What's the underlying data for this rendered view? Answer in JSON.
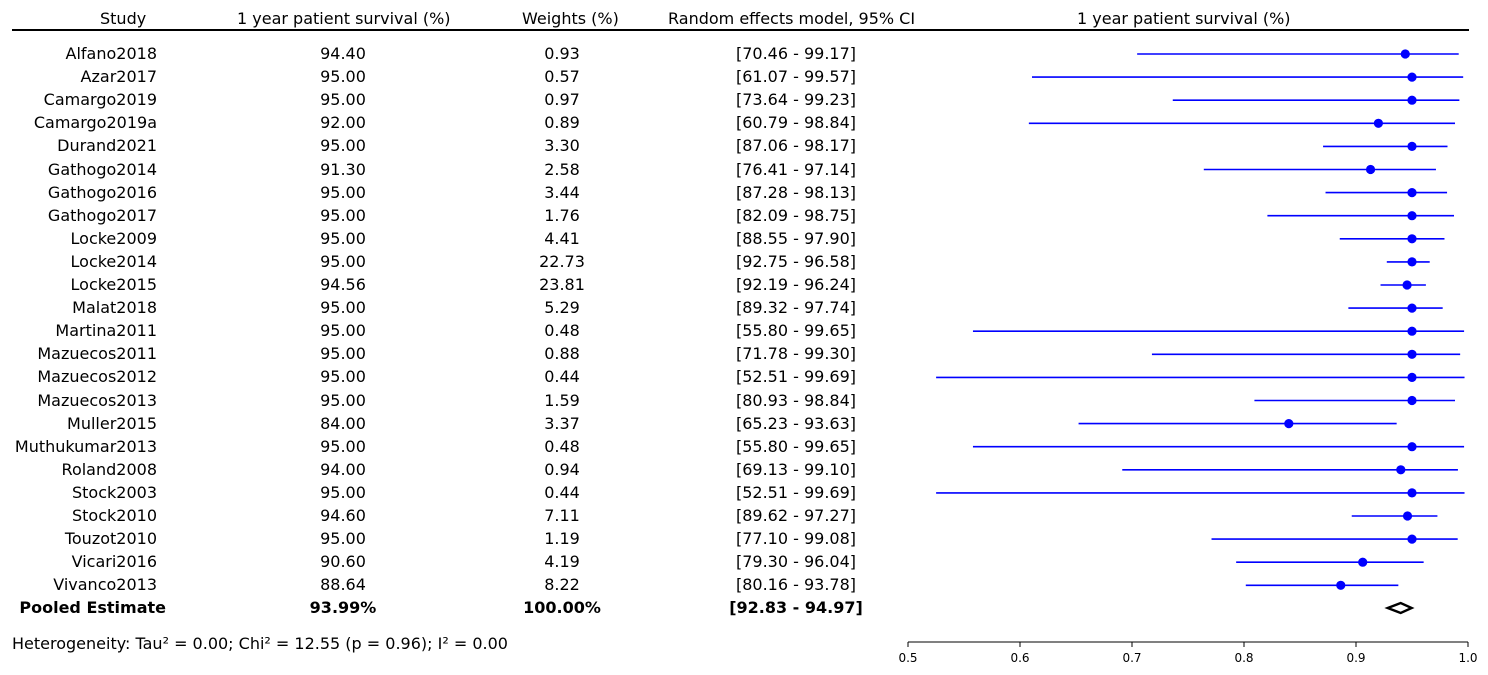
{
  "headers": {
    "study": "Study",
    "survival": "1 year patient survival (%)",
    "weights": "Weights (%)",
    "ci": "Random effects model, 95% CI",
    "plot": "1 year patient survival (%)"
  },
  "rows": [
    {
      "study": "Alfano2018",
      "survival": "94.40",
      "weight": "0.93",
      "ci": "[70.46 - 99.17]"
    },
    {
      "study": "Azar2017",
      "survival": "95.00",
      "weight": "0.57",
      "ci": "[61.07 - 99.57]"
    },
    {
      "study": "Camargo2019",
      "survival": "95.00",
      "weight": "0.97",
      "ci": "[73.64 - 99.23]"
    },
    {
      "study": "Camargo2019a",
      "survival": "92.00",
      "weight": "0.89",
      "ci": "[60.79 - 98.84]"
    },
    {
      "study": "Durand2021",
      "survival": "95.00",
      "weight": "3.30",
      "ci": "[87.06 - 98.17]"
    },
    {
      "study": "Gathogo2014",
      "survival": "91.30",
      "weight": "2.58",
      "ci": "[76.41 - 97.14]"
    },
    {
      "study": "Gathogo2016",
      "survival": "95.00",
      "weight": "3.44",
      "ci": "[87.28 - 98.13]"
    },
    {
      "study": "Gathogo2017",
      "survival": "95.00",
      "weight": "1.76",
      "ci": "[82.09 - 98.75]"
    },
    {
      "study": "Locke2009",
      "survival": "95.00",
      "weight": "4.41",
      "ci": "[88.55 - 97.90]"
    },
    {
      "study": "Locke2014",
      "survival": "95.00",
      "weight": "22.73",
      "ci": "[92.75 - 96.58]"
    },
    {
      "study": "Locke2015",
      "survival": "94.56",
      "weight": "23.81",
      "ci": "[92.19 - 96.24]"
    },
    {
      "study": "Malat2018",
      "survival": "95.00",
      "weight": "5.29",
      "ci": "[89.32 - 97.74]"
    },
    {
      "study": "Martina2011",
      "survival": "95.00",
      "weight": "0.48",
      "ci": "[55.80 - 99.65]"
    },
    {
      "study": "Mazuecos2011",
      "survival": "95.00",
      "weight": "0.88",
      "ci": "[71.78 - 99.30]"
    },
    {
      "study": "Mazuecos2012",
      "survival": "95.00",
      "weight": "0.44",
      "ci": "[52.51 - 99.69]"
    },
    {
      "study": "Mazuecos2013",
      "survival": "95.00",
      "weight": "1.59",
      "ci": "[80.93 - 98.84]"
    },
    {
      "study": "Muller2015",
      "survival": "84.00",
      "weight": "3.37",
      "ci": "[65.23 - 93.63]"
    },
    {
      "study": "Muthukumar2013",
      "survival": "95.00",
      "weight": "0.48",
      "ci": "[55.80 - 99.65]"
    },
    {
      "study": "Roland2008",
      "survival": "94.00",
      "weight": "0.94",
      "ci": "[69.13 - 99.10]"
    },
    {
      "study": "Stock2003",
      "survival": "95.00",
      "weight": "0.44",
      "ci": "[52.51 - 99.69]"
    },
    {
      "study": "Stock2010",
      "survival": "94.60",
      "weight": "7.11",
      "ci": "[89.62 - 97.27]"
    },
    {
      "study": "Touzot2010",
      "survival": "95.00",
      "weight": "1.19",
      "ci": "[77.10 - 99.08]"
    },
    {
      "study": "Vicari2016",
      "survival": "90.60",
      "weight": "4.19",
      "ci": "[79.30 - 96.04]"
    },
    {
      "study": "Vivanco2013",
      "survival": "88.64",
      "weight": "8.22",
      "ci": "[80.16 - 93.78]"
    }
  ],
  "pooled": {
    "study": "Pooled Estimate",
    "survival": "93.99%",
    "weight": "100.00%",
    "ci": "[92.83 - 94.97]"
  },
  "heterogeneity": "Heterogeneity: Tau² = 0.00; Chi² = 12.55 (p = 0.96); I² = 0.00",
  "chart_data": {
    "type": "scatter",
    "subtype": "forest-plot",
    "title": "1 year patient survival (%)",
    "xlim": [
      0.5,
      1.0
    ],
    "xticks": [
      0.5,
      0.6,
      0.7,
      0.8,
      0.9,
      1.0
    ],
    "xtick_labels": [
      "0.5",
      "0.6",
      "0.7",
      "0.8",
      "0.9",
      "1.0"
    ],
    "grid": false,
    "color": "#0000ff",
    "pooled_color": "#000000",
    "studies": [
      {
        "name": "Alfano2018",
        "estimate": 0.944,
        "lower": 0.7046,
        "upper": 0.9917
      },
      {
        "name": "Azar2017",
        "estimate": 0.95,
        "lower": 0.6107,
        "upper": 0.9957
      },
      {
        "name": "Camargo2019",
        "estimate": 0.95,
        "lower": 0.7364,
        "upper": 0.9923
      },
      {
        "name": "Camargo2019a",
        "estimate": 0.92,
        "lower": 0.6079,
        "upper": 0.9884
      },
      {
        "name": "Durand2021",
        "estimate": 0.95,
        "lower": 0.8706,
        "upper": 0.9817
      },
      {
        "name": "Gathogo2014",
        "estimate": 0.913,
        "lower": 0.7641,
        "upper": 0.9714
      },
      {
        "name": "Gathogo2016",
        "estimate": 0.95,
        "lower": 0.8728,
        "upper": 0.9813
      },
      {
        "name": "Gathogo2017",
        "estimate": 0.95,
        "lower": 0.8209,
        "upper": 0.9875
      },
      {
        "name": "Locke2009",
        "estimate": 0.95,
        "lower": 0.8855,
        "upper": 0.979
      },
      {
        "name": "Locke2014",
        "estimate": 0.95,
        "lower": 0.9275,
        "upper": 0.9658
      },
      {
        "name": "Locke2015",
        "estimate": 0.9456,
        "lower": 0.9219,
        "upper": 0.9624
      },
      {
        "name": "Malat2018",
        "estimate": 0.95,
        "lower": 0.8932,
        "upper": 0.9774
      },
      {
        "name": "Martina2011",
        "estimate": 0.95,
        "lower": 0.558,
        "upper": 0.9965
      },
      {
        "name": "Mazuecos2011",
        "estimate": 0.95,
        "lower": 0.7178,
        "upper": 0.993
      },
      {
        "name": "Mazuecos2012",
        "estimate": 0.95,
        "lower": 0.5251,
        "upper": 0.9969
      },
      {
        "name": "Mazuecos2013",
        "estimate": 0.95,
        "lower": 0.8093,
        "upper": 0.9884
      },
      {
        "name": "Muller2015",
        "estimate": 0.84,
        "lower": 0.6523,
        "upper": 0.9363
      },
      {
        "name": "Muthukumar2013",
        "estimate": 0.95,
        "lower": 0.558,
        "upper": 0.9965
      },
      {
        "name": "Roland2008",
        "estimate": 0.94,
        "lower": 0.6913,
        "upper": 0.991
      },
      {
        "name": "Stock2003",
        "estimate": 0.95,
        "lower": 0.5251,
        "upper": 0.9969
      },
      {
        "name": "Stock2010",
        "estimate": 0.946,
        "lower": 0.8962,
        "upper": 0.9727
      },
      {
        "name": "Touzot2010",
        "estimate": 0.95,
        "lower": 0.771,
        "upper": 0.9908
      },
      {
        "name": "Vicari2016",
        "estimate": 0.906,
        "lower": 0.793,
        "upper": 0.9604
      },
      {
        "name": "Vivanco2013",
        "estimate": 0.8864,
        "lower": 0.8016,
        "upper": 0.9378
      }
    ],
    "pooled": {
      "estimate": 0.9399,
      "lower": 0.9283,
      "upper": 0.9497
    }
  }
}
